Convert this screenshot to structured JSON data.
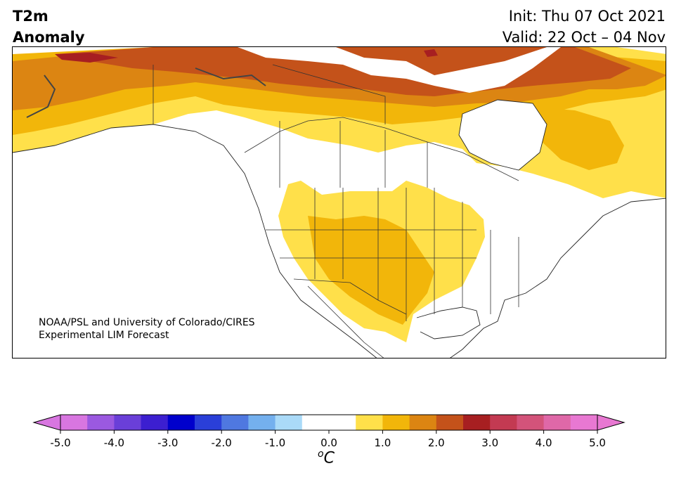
{
  "header": {
    "left_line1": "T2m",
    "left_line2": "Anomaly",
    "right_line1": "Init: Thu 07 Oct 2021",
    "right_line2": "Valid: 22 Oct – 04 Nov"
  },
  "credit": {
    "line1": "NOAA/PSL and University of Colorado/CIRES",
    "line2": "Experimental LIM Forecast"
  },
  "colorbar": {
    "ticks": [
      "-5.0",
      "-4.0",
      "-3.0",
      "-2.0",
      "-1.0",
      "0.0",
      "1.0",
      "2.0",
      "3.0",
      "4.0",
      "5.0"
    ],
    "unit_sup": "o",
    "unit": "C",
    "colors": [
      "#d876e0",
      "#9b59e0",
      "#6a3fd8",
      "#3c1fd0",
      "#0000cc",
      "#2a3fd8",
      "#4f78e0",
      "#74b0ee",
      "#aadaf8",
      "#ffffff",
      "#ffffff",
      "#ffe04a",
      "#f2b60a",
      "#dc8512",
      "#c4521a",
      "#a71f21",
      "#c33a52",
      "#d3537a",
      "#df68a8",
      "#e878d2"
    ],
    "under_color": "#d876e0",
    "over_color": "#e878d2"
  },
  "map": {
    "region": "North America",
    "shading_colors": {
      "level_0_5_to_1_0": "#ffe04a",
      "level_1_0_to_1_5": "#f2b60a",
      "level_1_5_to_2_0": "#dc8512",
      "level_2_0_to_2_5": "#c4521a",
      "level_2_5_to_3_0": "#a71f21"
    }
  }
}
